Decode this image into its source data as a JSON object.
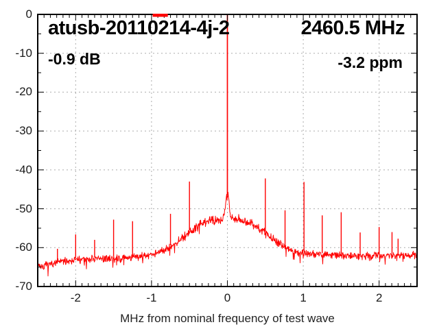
{
  "figure": {
    "background": "#ffffff"
  },
  "annotations": {
    "device_id": "atusb-20110214-4j-2",
    "nominal_frequency": "2460.5 MHz",
    "level": "-0.9 dB",
    "frequency_error": "-3.2 ppm"
  },
  "chart_data": {
    "type": "line",
    "title": "atusb-20110214-4j-2",
    "xlabel": "MHz from nominal frequency of test wave",
    "ylabel": "",
    "xlim": [
      -2.5,
      2.5
    ],
    "ylim": [
      -70,
      0
    ],
    "grid": true,
    "legend_position": "none",
    "trace_color": "#ff0000",
    "grid_color": "#ababab",
    "axis_color": "#000000",
    "xticks": [
      {
        "v": -2,
        "label": "-2"
      },
      {
        "v": -1,
        "label": "-1"
      },
      {
        "v": 0,
        "label": "0"
      },
      {
        "v": 1,
        "label": "1"
      },
      {
        "v": 2,
        "label": "2"
      }
    ],
    "yticks": [
      {
        "v": 0,
        "label": "0"
      },
      {
        "v": -10,
        "label": "-10"
      },
      {
        "v": -20,
        "label": "-20"
      },
      {
        "v": -30,
        "label": "-30"
      },
      {
        "v": -40,
        "label": "-40"
      },
      {
        "v": -50,
        "label": "-50"
      },
      {
        "v": -60,
        "label": "-60"
      },
      {
        "v": -70,
        "label": "-70"
      }
    ],
    "x_minor_divisions_per_major": 12,
    "y_minor_step_db": 5,
    "noise_floor_points": [
      [
        -2.5,
        -64.2
      ],
      [
        -2.45,
        -65.0
      ],
      [
        -2.35,
        -64.3
      ],
      [
        -2.2,
        -63.6
      ],
      [
        -2.0,
        -63.1
      ],
      [
        -1.7,
        -62.9
      ],
      [
        -1.4,
        -62.7
      ],
      [
        -1.2,
        -62.4
      ],
      [
        -1.05,
        -62.0
      ],
      [
        -0.95,
        -61.5
      ],
      [
        -0.85,
        -60.7
      ],
      [
        -0.75,
        -59.7
      ],
      [
        -0.65,
        -58.3
      ],
      [
        -0.55,
        -56.7
      ],
      [
        -0.45,
        -55.2
      ],
      [
        -0.35,
        -54.0
      ],
      [
        -0.25,
        -53.1
      ],
      [
        -0.15,
        -52.6
      ],
      [
        -0.05,
        -52.3
      ],
      [
        0.05,
        -52.3
      ],
      [
        0.15,
        -52.5
      ],
      [
        0.25,
        -53.2
      ],
      [
        0.35,
        -54.2
      ],
      [
        0.45,
        -55.5
      ],
      [
        0.55,
        -57.0
      ],
      [
        0.65,
        -58.5
      ],
      [
        0.75,
        -59.8
      ],
      [
        0.85,
        -60.7
      ],
      [
        0.95,
        -61.2
      ],
      [
        1.1,
        -61.6
      ],
      [
        1.3,
        -61.9
      ],
      [
        1.6,
        -62.1
      ],
      [
        2.0,
        -62.0
      ],
      [
        2.5,
        -61.9
      ]
    ],
    "noise_amplitude_db": 1.1,
    "noise_seed": 7,
    "carrier": {
      "x": 0.0,
      "top_db": 0.0,
      "shoulder_amp_db": 5.8,
      "shoulder_sigma_mhz": 0.022
    },
    "spurs": [
      [
        -2.24,
        -60.3
      ],
      [
        -2.0,
        -56.6
      ],
      [
        -1.75,
        -58.0
      ],
      [
        -1.5,
        -52.8
      ],
      [
        -1.25,
        -53.2
      ],
      [
        -0.75,
        -51.3
      ],
      [
        -0.5,
        -43.0
      ],
      [
        0.5,
        -42.2
      ],
      [
        0.76,
        -50.4
      ],
      [
        1.01,
        -43.1
      ],
      [
        1.25,
        -51.7
      ],
      [
        1.5,
        -50.9
      ],
      [
        1.75,
        -56.1
      ],
      [
        2.0,
        -54.7
      ],
      [
        2.17,
        -56.0
      ],
      [
        2.25,
        -57.7
      ]
    ],
    "marker_bar": {
      "x0": -0.985,
      "x1": -0.785,
      "db": 0
    }
  }
}
